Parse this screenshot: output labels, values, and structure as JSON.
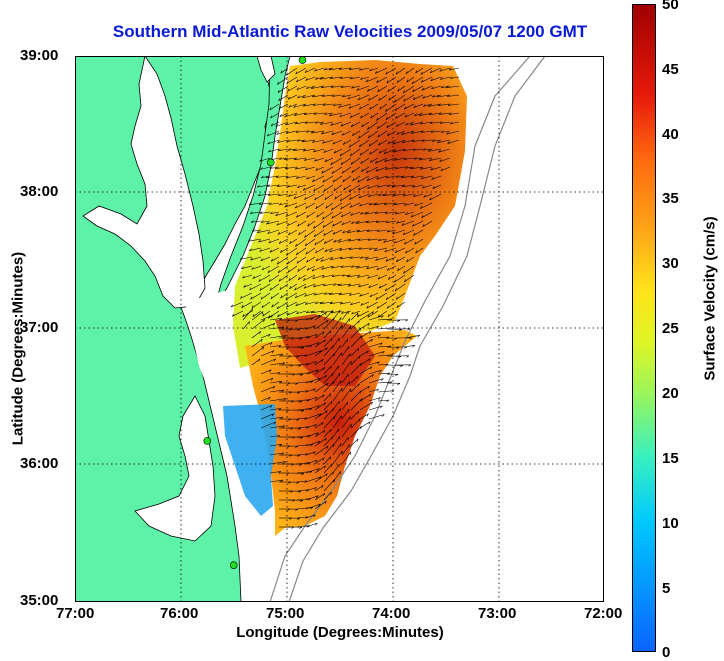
{
  "title": "Southern Mid-Atlantic Raw Velocities 2009/05/07 1200 GMT",
  "xaxis": {
    "label": "Longitude (Degrees:Minutes)",
    "ticks": [
      "77:00",
      "76:00",
      "75:00",
      "74:00",
      "73:00",
      "72:00"
    ],
    "range": [
      -77,
      -72
    ]
  },
  "yaxis": {
    "label": "Latitude (Degrees:Minutes)",
    "ticks": [
      "39:00",
      "38:00",
      "37:00",
      "36:00",
      "35:00"
    ],
    "range": [
      35,
      39
    ]
  },
  "colorbar": {
    "label": "Surface Velocity (cm/s)",
    "ticks": [
      "50",
      "45",
      "40",
      "35",
      "30",
      "25",
      "20",
      "15",
      "10",
      "5",
      "0"
    ],
    "range": [
      0,
      50
    ]
  },
  "grid": "dotted",
  "colors": {
    "land": "#5ef2a8",
    "title": "#0a1ad6",
    "station": "#22dd22",
    "arrow": "#000000"
  },
  "chart_data": {
    "type": "heatmap",
    "field": "surface velocity vectors with speed shading",
    "x_range": [
      -77,
      -72
    ],
    "y_range": [
      35,
      39
    ],
    "c_range": [
      0,
      50
    ],
    "stations": [
      [
        -74.85,
        38.97
      ],
      [
        -75.15,
        38.22
      ],
      [
        -75.75,
        36.18
      ],
      [
        -75.5,
        35.27
      ]
    ]
  }
}
